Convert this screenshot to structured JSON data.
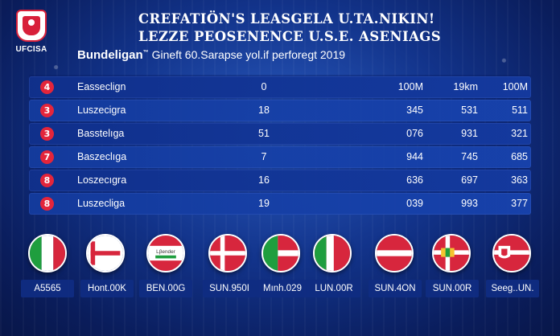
{
  "logo": {
    "text": "UFCISA",
    "icon": "shield-crest-icon"
  },
  "title": {
    "line1": "CREFATIÖN'S LEASGELA U.TA.NIKIN!",
    "line2": "LEZZE PEOSENENCE U.S.E. ASENIAGS"
  },
  "subtitle": {
    "brand": "Bundeligan",
    "brand_mark": "™",
    "text": "Gineft 60.Sarapse yol.if perforegt 2019"
  },
  "colors": {
    "accent": "#e3253b",
    "row": "#1a44a8",
    "background": "#0a1d5c"
  },
  "table": {
    "rows": [
      {
        "rank": "4",
        "name": "Easseclign",
        "c1": "0",
        "c2": "100M",
        "c3": "19km",
        "c4": "100M"
      },
      {
        "rank": "3",
        "name": "Luszecigra",
        "c1": "18",
        "c2": "345",
        "c3": "531",
        "c4": "511"
      },
      {
        "rank": "3",
        "name": "Basstelıga",
        "c1": "51",
        "c2": "076",
        "c3": "931",
        "c4": "321"
      },
      {
        "rank": "7",
        "name": "Baszeclıga",
        "c1": "7",
        "c2": "944",
        "c3": "745",
        "c4": "685"
      },
      {
        "rank": "8",
        "name": "Loszecıgra",
        "c1": "16",
        "c2": "636",
        "c3": "697",
        "c4": "363"
      },
      {
        "rank": "8",
        "name": "Luszecliga",
        "c1": "19",
        "c2": "039",
        "c3": "993",
        "c4": "377"
      }
    ]
  },
  "flags": [
    {
      "label": "A5565",
      "icon": "italy-flag-icon"
    },
    {
      "label": "Hont.00K",
      "icon": "red-white-cross-flag-icon"
    },
    {
      "label": "BEN.00G",
      "icon": "red-white-flag-icon",
      "text": "Lβender"
    },
    {
      "label": "SUN.950I",
      "icon": "denmark-flag-icon"
    },
    {
      "label": "Mınh.029",
      "icon": "red-green-white-flag-icon"
    },
    {
      "label": "LUN.00R",
      "icon": "green-white-red-flag-icon"
    },
    {
      "label": "SUN.4ON",
      "icon": "red-white-stripe-flag-icon"
    },
    {
      "label": "SUN.00R",
      "icon": "red-cross-emblem-flag-icon"
    },
    {
      "label": "Seeg..UN.",
      "icon": "red-crest-flag-icon"
    }
  ]
}
